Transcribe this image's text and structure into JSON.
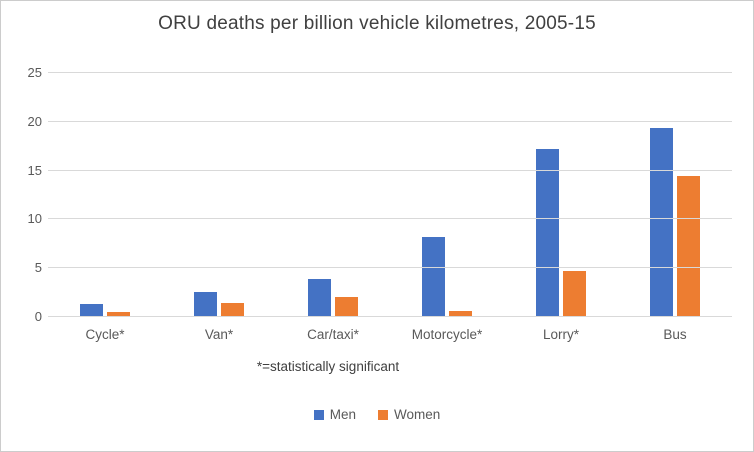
{
  "chart_data": {
    "type": "bar",
    "title": "ORU deaths per billion vehicle kilometres, 2005-15",
    "note": "*=statistically significant",
    "categories": [
      "Cycle*",
      "Van*",
      "Car/taxi*",
      "Motorcycle*",
      "Lorry*",
      "Bus"
    ],
    "series": [
      {
        "name": "Men",
        "color": "#4472C4",
        "values": [
          1.3,
          2.6,
          3.9,
          8.2,
          17.2,
          19.4
        ]
      },
      {
        "name": "Women",
        "color": "#ED7D31",
        "values": [
          0.5,
          1.4,
          2.1,
          0.6,
          4.7,
          14.4
        ]
      }
    ],
    "ylim": [
      0,
      25
    ],
    "yticks": [
      0,
      5,
      10,
      15,
      20,
      25
    ],
    "xlabel": "",
    "ylabel": "",
    "grid": true,
    "legend_position": "bottom"
  }
}
